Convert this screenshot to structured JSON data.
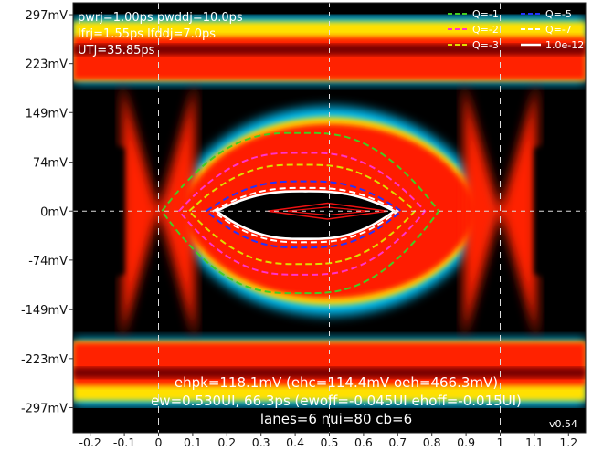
{
  "chart_data": {
    "type": "heatmap",
    "title": "",
    "xlabel": "",
    "ylabel": "",
    "xlim": [
      -0.25,
      1.25
    ],
    "ylim": [
      -335,
      315
    ],
    "x_ticks": [
      "-0.2",
      "-0.1",
      "0",
      "0.1",
      "0.2",
      "0.3",
      "0.4",
      "0.5",
      "0.6",
      "0.7",
      "0.8",
      "0.9",
      "1",
      "1.1",
      "1.2"
    ],
    "x_tick_values": [
      -0.2,
      -0.1,
      0,
      0.1,
      0.2,
      0.3,
      0.4,
      0.5,
      0.6,
      0.7,
      0.8,
      0.9,
      1,
      1.1,
      1.2
    ],
    "y_ticks": [
      "297mV",
      "223mV",
      "149mV",
      "74mV",
      "0mV",
      "-74mV",
      "-149mV",
      "-223mV",
      "-297mV"
    ],
    "y_tick_values": [
      297,
      223,
      149,
      74,
      0,
      -74,
      -149,
      -223,
      -297
    ],
    "params_text": [
      "pwrj=1.00ps pwddj=10.0ps",
      "lfrj=1.55ps lfddj=7.0ps",
      "UTJ=35.85ps"
    ],
    "summary_text": [
      "ehpk=118.1mV (ehc=114.4mV oeh=466.3mV)",
      "ew=0.530UI, 66.3ps (ewoff=-0.045UI ehoff=-0.015UI)",
      "lanes=6 nui=80 cb=6"
    ],
    "version": "v0.54",
    "legend": {
      "placement": "top-right",
      "entries": [
        {
          "label": "Q=-1",
          "color": "#44cc22",
          "style": "dashed"
        },
        {
          "label": "Q=-5",
          "color": "#2233ff",
          "style": "dashed"
        },
        {
          "label": "Q=-2",
          "color": "#ff33cc",
          "style": "dashed"
        },
        {
          "label": "Q=-7",
          "color": "#ffffff",
          "style": "dashed"
        },
        {
          "label": "Q=-3",
          "color": "#dddd00",
          "style": "dashed"
        },
        {
          "label": "1.0e-12",
          "color": "#ffffff",
          "style": "solid"
        }
      ]
    },
    "eye_contours": [
      {
        "q": "Q=-1",
        "color": "#44cc22",
        "x_left": 0.01,
        "x_right": 0.82,
        "y_top": 118,
        "y_bottom": -124
      },
      {
        "q": "Q=-2",
        "color": "#ff33cc",
        "x_left": 0.06,
        "x_right": 0.78,
        "y_top": 88,
        "y_bottom": -96
      },
      {
        "q": "Q=-3",
        "color": "#dddd00",
        "x_left": 0.09,
        "x_right": 0.75,
        "y_top": 70,
        "y_bottom": -80
      },
      {
        "q": "Q=-5",
        "color": "#2233ff",
        "x_left": 0.14,
        "x_right": 0.71,
        "y_top": 45,
        "y_bottom": -55
      },
      {
        "q": "Q=-7",
        "color": "#ffffff",
        "x_left": 0.16,
        "x_right": 0.7,
        "y_top": 35,
        "y_bottom": -47
      },
      {
        "q": "1.0e-12",
        "color": "#ffffff",
        "x_left": 0.17,
        "x_right": 0.69,
        "y_top": 30,
        "y_bottom": -42
      }
    ],
    "inner_eye": {
      "color": "#ee1111",
      "x_left": 0.32,
      "x_right": 0.67,
      "y_top": 12,
      "y_bottom": -12
    },
    "grid": false,
    "crosshair": {
      "x": 0.5,
      "y": 0,
      "extra_x": [
        0,
        1
      ]
    }
  }
}
